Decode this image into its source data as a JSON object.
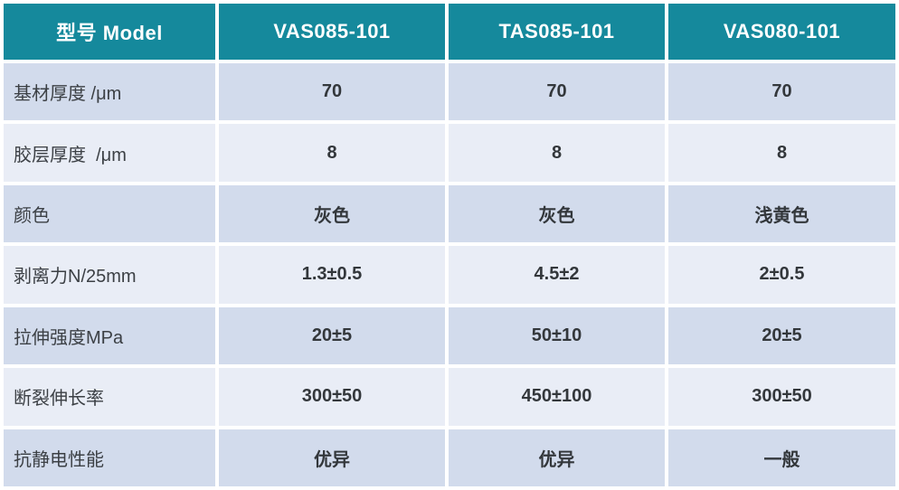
{
  "table": {
    "header": {
      "label": "型号 Model",
      "columns": [
        "VAS085-101",
        "TAS085-101",
        "VAS080-101"
      ]
    },
    "rows": [
      {
        "label": "基材厚度 /μm",
        "values": [
          "70",
          "70",
          "70"
        ]
      },
      {
        "label": "胶层厚度  /μm",
        "values": [
          "8",
          "8",
          "8"
        ]
      },
      {
        "label": "颜色",
        "values": [
          "灰色",
          "灰色",
          "浅黄色"
        ]
      },
      {
        "label": "剥离力N/25mm",
        "values": [
          "1.3±0.5",
          "4.5±2",
          "2±0.5"
        ]
      },
      {
        "label": "拉伸强度MPa",
        "values": [
          "20±5",
          "50±10",
          "20±5"
        ]
      },
      {
        "label": "断裂伸长率",
        "values": [
          "300±50",
          "450±100",
          "300±50"
        ]
      },
      {
        "label": "抗静电性能",
        "values": [
          "优异",
          "优异",
          "一般"
        ]
      }
    ],
    "colors": {
      "header_bg": "#15899C",
      "header_text": "#FFFFFF",
      "row_odd_bg": "#D2DBEC",
      "row_even_bg": "#E9EDF6",
      "label_text": "#3C4045",
      "value_text": "#33373B",
      "divider": "#FFFFFF"
    }
  }
}
